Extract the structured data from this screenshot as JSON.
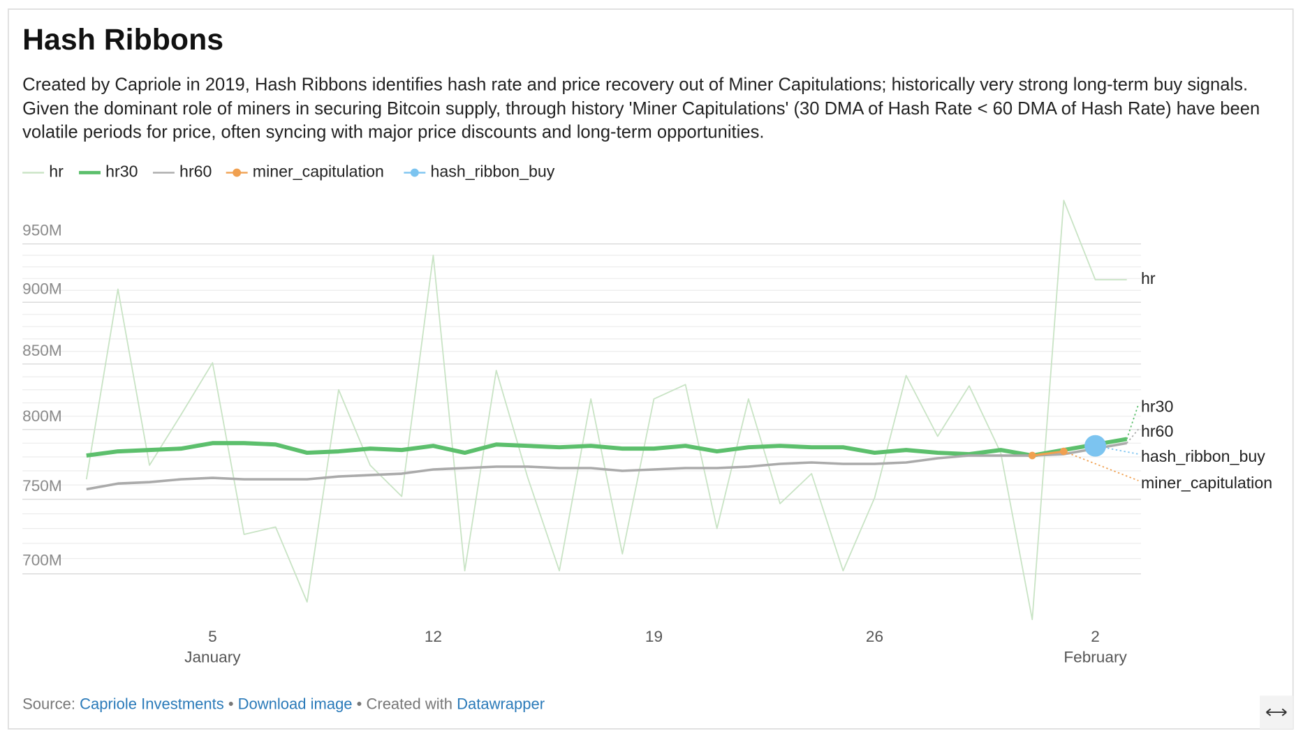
{
  "chart_data": {
    "type": "line",
    "title": "Hash Ribbons",
    "subtitle": "Created by Capriole in 2019, Hash Ribbons identifies hash rate and price recovery out of Miner Capitulations; historically very strong long-term buy signals. Given the dominant role of miners in securing Bitcoin supply, through history 'Miner Capitulations' (30 DMA of Hash Rate < 60 DMA of Hash Rate) have been volatile periods for price, often syncing with major price discounts and long-term opportunities.",
    "x": [
      "01-01",
      "01-02",
      "01-03",
      "01-04",
      "01-05",
      "01-06",
      "01-07",
      "01-08",
      "01-09",
      "01-10",
      "01-11",
      "01-12",
      "01-13",
      "01-14",
      "01-15",
      "01-16",
      "01-17",
      "01-18",
      "01-19",
      "01-20",
      "01-21",
      "01-22",
      "01-23",
      "01-24",
      "01-25",
      "01-26",
      "01-27",
      "01-28",
      "01-29",
      "01-30",
      "01-31",
      "02-01",
      "02-02",
      "02-03"
    ],
    "xlim": [
      "01-01",
      "02-03"
    ],
    "xticks": [
      {
        "value": "01-05",
        "label": "5",
        "sublabel": "January"
      },
      {
        "value": "01-12",
        "label": "12"
      },
      {
        "value": "01-19",
        "label": "19"
      },
      {
        "value": "01-26",
        "label": "26"
      },
      {
        "value": "02-02",
        "label": "2",
        "sublabel": "February"
      }
    ],
    "ylim": [
      665,
      1000
    ],
    "yscale": "log",
    "yticks": [
      {
        "value": 700000000,
        "label": "700M"
      },
      {
        "value": 750000000,
        "label": "750M"
      },
      {
        "value": 800000000,
        "label": "800M"
      },
      {
        "value": 850000000,
        "label": "850M"
      },
      {
        "value": 900000000,
        "label": "900M"
      },
      {
        "value": 950000000,
        "label": "950M"
      }
    ],
    "ygrid": [
      700,
      710,
      720,
      730,
      740,
      750,
      760,
      770,
      780,
      790,
      800,
      810,
      820,
      830,
      840,
      850,
      860,
      870,
      880,
      890,
      900,
      910,
      920,
      930,
      940,
      950
    ],
    "y_unit_scale": 1000000,
    "grid": true,
    "series": [
      {
        "name": "hr",
        "color": "#c8e3c4",
        "style": "thin",
        "values": [
          764,
          911,
          774,
          811,
          851,
          726,
          731,
          682,
          830,
          774,
          752,
          940,
          702,
          845,
          765,
          702,
          823,
          713,
          823,
          834,
          730,
          823,
          747,
          768,
          702,
          751,
          841,
          795,
          833,
          783,
          671,
          989,
          919,
          919
        ]
      },
      {
        "name": "hr30",
        "color": "#5cbf6c",
        "style": "thick",
        "values": [
          781,
          784,
          785,
          786,
          790,
          790,
          789,
          783,
          784,
          786,
          785,
          788,
          783,
          789,
          788,
          787,
          788,
          786,
          786,
          788,
          784,
          787,
          788,
          787,
          787,
          783,
          785,
          783,
          782,
          785,
          781,
          785,
          789,
          793
        ]
      },
      {
        "name": "hr60",
        "color": "#aaaaaa",
        "style": "medium",
        "values": [
          757,
          761,
          762,
          764,
          765,
          764,
          764,
          764,
          766,
          767,
          768,
          771,
          772,
          773,
          773,
          772,
          772,
          770,
          771,
          772,
          772,
          773,
          775,
          776,
          775,
          775,
          776,
          779,
          781,
          781,
          781,
          782,
          786,
          790
        ]
      },
      {
        "name": "miner_capitulation",
        "color": "#f0a050",
        "style": "dots",
        "values": [
          null,
          null,
          null,
          null,
          null,
          null,
          null,
          null,
          null,
          null,
          null,
          null,
          null,
          null,
          null,
          null,
          null,
          null,
          null,
          null,
          null,
          null,
          null,
          null,
          null,
          null,
          null,
          null,
          null,
          null,
          781,
          784,
          null,
          null
        ]
      },
      {
        "name": "hash_ribbon_buy",
        "color": "#7cc4f0",
        "style": "bubble",
        "values": [
          null,
          null,
          null,
          null,
          null,
          null,
          null,
          null,
          null,
          null,
          null,
          null,
          null,
          null,
          null,
          null,
          null,
          null,
          null,
          null,
          null,
          null,
          null,
          null,
          null,
          null,
          null,
          null,
          null,
          null,
          null,
          null,
          788,
          null
        ]
      }
    ]
  },
  "footer": {
    "source_label": "Source:",
    "source": "Capriole Investments",
    "download": "Download image",
    "created": "Created with",
    "tool": "Datawrapper"
  }
}
